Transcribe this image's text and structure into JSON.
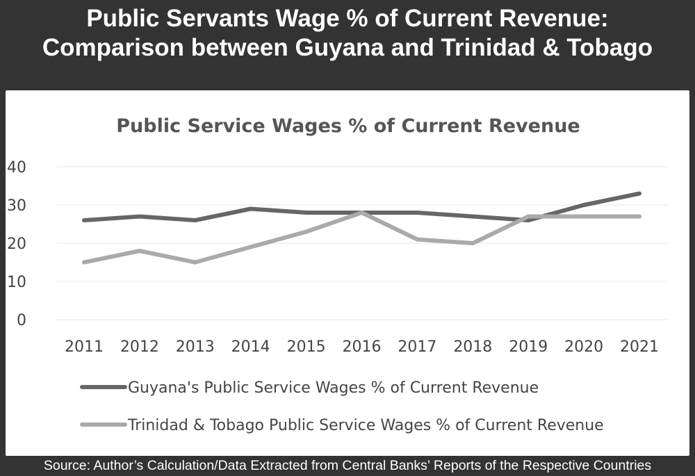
{
  "header": {
    "line1": "Public Servants Wage % of Current Revenue:",
    "line2": "Comparison between Guyana and Trinidad & Tobago"
  },
  "footer": {
    "source": "Source: Author’s Calculation/Data Extracted from Central Banks’ Reports of the Respective Countries"
  },
  "chart_data": {
    "type": "line",
    "title": "Public Service Wages % of Current Revenue",
    "xlabel": "",
    "ylabel": "",
    "categories": [
      "2011",
      "2012",
      "2013",
      "2014",
      "2015",
      "2016",
      "2017",
      "2018",
      "2019",
      "2020",
      "2021"
    ],
    "ylim": [
      0,
      40
    ],
    "yticks": [
      "0",
      "10",
      "20",
      "30",
      "40"
    ],
    "grid": true,
    "legend_position": "bottom",
    "series": [
      {
        "name": "Guyana's Public Service Wages % of Current Revenue",
        "color": "#666666",
        "values": [
          26,
          27,
          26,
          29,
          28,
          28,
          28,
          27,
          26,
          30,
          33
        ]
      },
      {
        "name": "Trinidad & Tobago Public Service Wages % of Current Revenue",
        "color": "#aaaaaa",
        "values": [
          15,
          18,
          15,
          19,
          23,
          28,
          21,
          20,
          27,
          27,
          27
        ]
      }
    ]
  }
}
